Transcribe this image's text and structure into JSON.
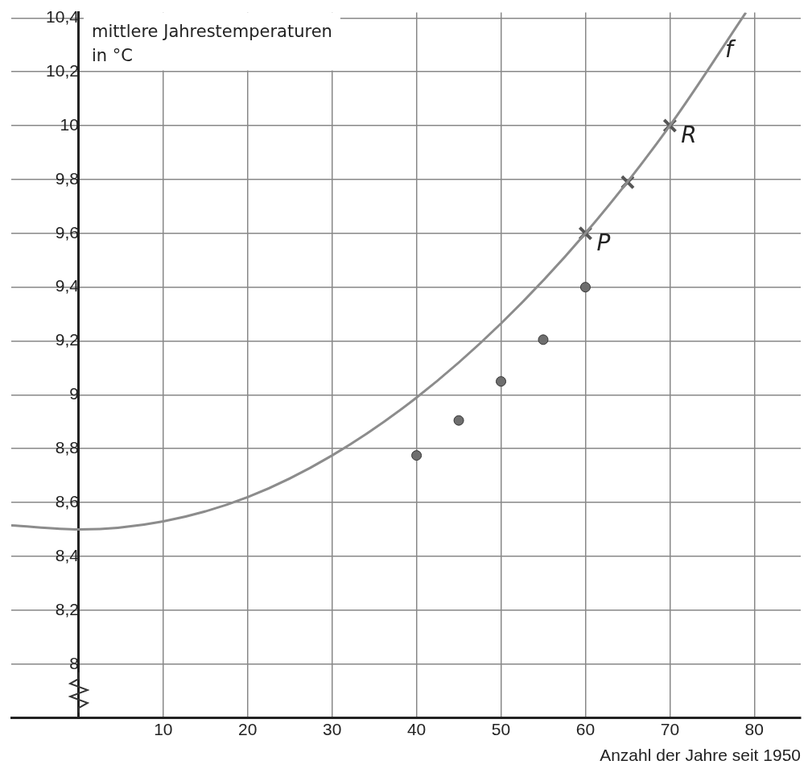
{
  "chart_data": {
    "type": "scatter",
    "xlabel": "Anzahl der Jahre seit 1950",
    "ylabel": "mittlere Jahrestemperaturen in °C",
    "xlim": [
      -8,
      85.5
    ],
    "ylim": [
      7.8,
      10.42
    ],
    "xticks": [
      10,
      20,
      30,
      40,
      50,
      60,
      70,
      80
    ],
    "yticks": [
      8,
      {
        "value": 8.2,
        "label": "8,2"
      },
      {
        "value": 8.4,
        "label": "8,4"
      },
      {
        "value": 8.6,
        "label": "8,6"
      },
      {
        "value": 8.8,
        "label": "8,8"
      },
      9,
      {
        "value": 9.2,
        "label": "9,2"
      },
      {
        "value": 9.4,
        "label": "9,4"
      },
      {
        "value": 9.6,
        "label": "9,6"
      },
      {
        "value": 9.8,
        "label": "9,8"
      },
      10,
      {
        "value": 10.2,
        "label": "10,2"
      },
      {
        "value": 10.4,
        "label": "10,4"
      }
    ],
    "grid": true,
    "legend": false,
    "series": [
      {
        "name": "f",
        "type": "line",
        "color": "#8c8c8c",
        "marker": "none",
        "x": [
          -8,
          0,
          10,
          20,
          30,
          40,
          50,
          60,
          70,
          79
        ],
        "values": [
          8.515,
          8.5,
          8.53,
          8.62,
          8.775,
          8.99,
          9.265,
          9.6,
          10.0,
          10.42
        ]
      },
      {
        "type": "scatter",
        "color": "#6e6e6e",
        "marker": "circle",
        "x": [
          40,
          45,
          50,
          55,
          60
        ],
        "values": [
          8.775,
          8.905,
          9.05,
          9.205,
          9.4
        ]
      },
      {
        "type": "scatter",
        "color": "#555555",
        "marker": "cross",
        "x": [
          60,
          65,
          70
        ],
        "values": [
          9.6,
          9.79,
          10.0
        ]
      }
    ],
    "annotations": [
      {
        "text": "P",
        "x": 60,
        "y": 9.6
      },
      {
        "text": "R",
        "x": 70,
        "y": 10.0
      }
    ]
  }
}
